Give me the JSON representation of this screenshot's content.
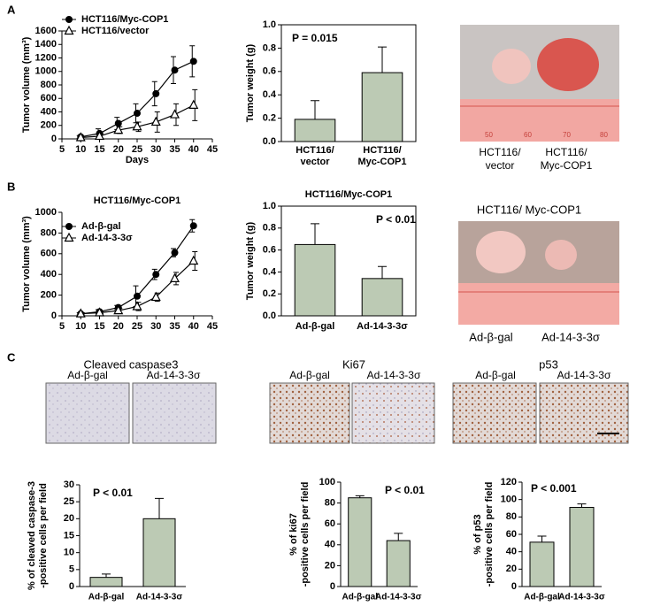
{
  "panel_labels": [
    "A",
    "B",
    "C"
  ],
  "photo_A": {
    "labels": [
      "HCT116/ vector",
      "HCT116/ Myc-COP1"
    ],
    "ruler_labels": [
      "50",
      "60",
      "70",
      "80"
    ]
  },
  "photo_B": {
    "title": "HCT116/ Myc-COP1",
    "labels": [
      "Ad-β-gal",
      "Ad-14-3-3σ"
    ]
  },
  "ihc": [
    {
      "title": "Cleaved caspase3",
      "labels": [
        "Ad-β-gal",
        "Ad-14-3-3σ"
      ]
    },
    {
      "title": "Ki67",
      "labels": [
        "Ad-β-gal",
        "Ad-14-3-3σ"
      ]
    },
    {
      "title": "p53",
      "labels": [
        "Ad-β-gal",
        "Ad-14-3-3σ"
      ]
    }
  ],
  "chart_data": [
    {
      "type": "line",
      "xlabel": "Days",
      "ylabel": "Tumor volume (mm³)",
      "x": [
        10,
        15,
        20,
        25,
        30,
        35,
        40
      ],
      "xlim": [
        5,
        45
      ],
      "xticks": [
        5,
        10,
        15,
        20,
        25,
        30,
        35,
        40,
        45
      ],
      "ylim": [
        0,
        1600
      ],
      "yticks": [
        0,
        200,
        400,
        600,
        800,
        1000,
        1200,
        1400,
        1600
      ],
      "legend": "top-left",
      "series": [
        {
          "name": "HCT116/Myc-COP1",
          "color": "#000000",
          "marker": "circle",
          "values": [
            30,
            80,
            230,
            380,
            670,
            1020,
            1150
          ],
          "errors": [
            20,
            70,
            90,
            140,
            180,
            200,
            230
          ]
        },
        {
          "name": "HCT116/vector",
          "color": "#000000",
          "marker": "triangle",
          "values": [
            20,
            40,
            130,
            180,
            250,
            360,
            500
          ],
          "errors": [
            20,
            40,
            50,
            70,
            150,
            160,
            230
          ]
        }
      ]
    },
    {
      "type": "bar",
      "ylabel": "Tumor weight (g)",
      "annotation": "P = 0.015",
      "categories": [
        "HCT116/ vector",
        "HCT116/ Myc-COP1"
      ],
      "values": [
        0.19,
        0.59
      ],
      "errors": [
        0.16,
        0.22
      ],
      "color": "#bccab4",
      "frame": true,
      "ylim": [
        0,
        1
      ],
      "yticks": [
        {
          "value": 0,
          "label": "0.0"
        },
        {
          "value": 0.2,
          "label": "0.2"
        },
        {
          "value": 0.4,
          "label": "0.4"
        },
        {
          "value": 0.6,
          "label": "0.6"
        },
        {
          "value": 0.8,
          "label": "0.8"
        },
        {
          "value": 1,
          "label": "1.0"
        }
      ]
    },
    {
      "type": "line",
      "title": "HCT116/Myc-COP1",
      "ylabel": "Tumor volume (mm³)",
      "x": [
        10,
        15,
        20,
        25,
        30,
        35,
        40
      ],
      "xlim": [
        5,
        45
      ],
      "xticks": [
        5,
        10,
        15,
        20,
        25,
        30,
        35,
        40,
        45
      ],
      "ylim": [
        0,
        1000
      ],
      "yticks": [
        0,
        200,
        400,
        600,
        800,
        1000
      ],
      "legend": "top-left",
      "series": [
        {
          "name": "Ad-β-gal",
          "color": "#000000",
          "marker": "circle",
          "values": [
            20,
            40,
            80,
            190,
            400,
            610,
            870
          ],
          "errors": [
            10,
            20,
            20,
            100,
            50,
            40,
            60
          ]
        },
        {
          "name": "Ad-14-3-3σ",
          "color": "#000000",
          "marker": "triangle",
          "values": [
            20,
            30,
            50,
            90,
            180,
            360,
            530
          ],
          "errors": [
            10,
            10,
            20,
            40,
            40,
            60,
            90
          ]
        }
      ]
    },
    {
      "type": "bar",
      "title": "HCT116/Myc-COP1",
      "ylabel": "Tumor weight (g)",
      "annotation": "P < 0.01",
      "categories": [
        "Ad-β-gal",
        "Ad-14-3-3σ"
      ],
      "values": [
        0.65,
        0.34
      ],
      "errors": [
        0.19,
        0.11
      ],
      "color": "#bccab4",
      "frame": true,
      "ylim": [
        0,
        1
      ],
      "yticks": [
        {
          "value": 0,
          "label": "0.0"
        },
        {
          "value": 0.2,
          "label": "0.2"
        },
        {
          "value": 0.4,
          "label": "0.4"
        },
        {
          "value": 0.6,
          "label": "0.6"
        },
        {
          "value": 0.8,
          "label": "0.8"
        },
        {
          "value": 1,
          "label": "1.0"
        }
      ]
    },
    {
      "type": "bar",
      "ylabel": [
        "% of cleaved caspase-3",
        "-positive cells per field"
      ],
      "annotation": "P < 0.01",
      "categories": [
        "Ad-β-gal",
        "Ad-14-3-3σ"
      ],
      "values": [
        2.7,
        20
      ],
      "errors": [
        1,
        6
      ],
      "color": "#bccab4",
      "frame": false,
      "ylim": [
        0,
        30
      ],
      "yticks": [
        0,
        5,
        10,
        15,
        20,
        25,
        30
      ]
    },
    {
      "type": "bar",
      "ylabel": [
        "% of ki67",
        "-positive cells per field"
      ],
      "annotation": "P < 0.01",
      "categories": [
        "Ad-β-gal",
        "Ad-14-3-3σ"
      ],
      "values": [
        85,
        44
      ],
      "errors": [
        2,
        7
      ],
      "color": "#bccab4",
      "frame": false,
      "ylim": [
        0,
        100
      ],
      "yticks": [
        0,
        20,
        40,
        60,
        80,
        100
      ]
    },
    {
      "type": "bar",
      "ylabel": [
        "% of p53",
        "-positive cells per field"
      ],
      "annotation": "P < 0.001",
      "categories": [
        "Ad-β-gal",
        "Ad-14-3-3σ"
      ],
      "values": [
        51,
        91
      ],
      "errors": [
        7,
        4
      ],
      "color": "#bccab4",
      "frame": false,
      "ylim": [
        0,
        120
      ],
      "yticks": [
        0,
        20,
        40,
        60,
        80,
        100,
        120
      ]
    }
  ]
}
